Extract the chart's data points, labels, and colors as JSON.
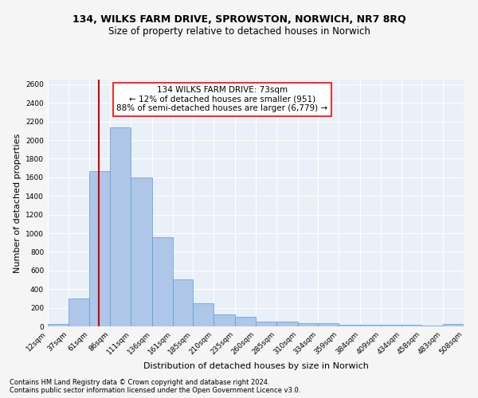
{
  "title1": "134, WILKS FARM DRIVE, SPROWSTON, NORWICH, NR7 8RQ",
  "title2": "Size of property relative to detached houses in Norwich",
  "xlabel": "Distribution of detached houses by size in Norwich",
  "ylabel": "Number of detached properties",
  "footnote1": "Contains HM Land Registry data © Crown copyright and database right 2024.",
  "footnote2": "Contains public sector information licensed under the Open Government Licence v3.0.",
  "annotation_line1": "134 WILKS FARM DRIVE: 73sqm",
  "annotation_line2": "← 12% of detached houses are smaller (951)",
  "annotation_line3": "88% of semi-detached houses are larger (6,779) →",
  "property_size": 73,
  "bin_edges": [
    12,
    37,
    61,
    86,
    111,
    136,
    161,
    185,
    210,
    235,
    260,
    285,
    310,
    334,
    359,
    384,
    409,
    434,
    458,
    483,
    508
  ],
  "bar_heights": [
    25,
    300,
    1670,
    2140,
    1600,
    960,
    505,
    250,
    125,
    105,
    50,
    50,
    35,
    35,
    20,
    20,
    20,
    18,
    5,
    25
  ],
  "bar_color": "#aec6e8",
  "bar_edge_color": "#5b9bd5",
  "vline_color": "#cc0000",
  "ylim": [
    0,
    2650
  ],
  "yticks": [
    0,
    200,
    400,
    600,
    800,
    1000,
    1200,
    1400,
    1600,
    1800,
    2000,
    2200,
    2400,
    2600
  ],
  "bg_color": "#eaf0f8",
  "grid_color": "#ffffff",
  "fig_bg_color": "#f5f5f5",
  "title1_fontsize": 9,
  "title2_fontsize": 8.5,
  "annotation_fontsize": 7.5,
  "tick_label_fontsize": 6.5,
  "axis_label_fontsize": 8,
  "ylabel_fontsize": 8,
  "footnote_fontsize": 6
}
